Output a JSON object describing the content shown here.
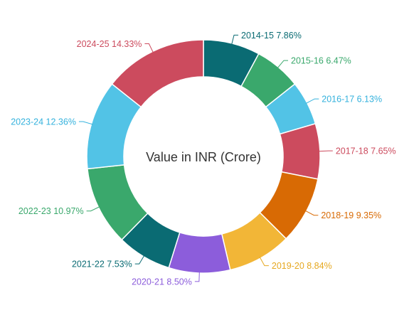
{
  "chart_data": {
    "type": "pie",
    "variant": "donut",
    "center_label": "Value in INR (Crore)",
    "categories": [
      "2014-15",
      "2015-16",
      "2016-17",
      "2017-18",
      "2018-19",
      "2019-20",
      "2020-21",
      "2021-22",
      "2022-23",
      "2023-24",
      "2024-25"
    ],
    "values": [
      7.86,
      6.47,
      6.13,
      7.65,
      9.35,
      8.84,
      8.5,
      7.53,
      10.97,
      12.36,
      14.33
    ],
    "value_labels": [
      "7.86%",
      "6.47%",
      "6.13%",
      "7.65%",
      "9.35%",
      "8.84%",
      "8.50%",
      "7.53%",
      "10.97%",
      "12.36%",
      "14.33%"
    ],
    "colors": [
      "#0a6b73",
      "#3aa86c",
      "#52c3e6",
      "#cc4b5e",
      "#d86a04",
      "#f2b637",
      "#8c5ddb",
      "#0a6b73",
      "#3aa86c",
      "#52c3e6",
      "#cc4b5e"
    ],
    "label_colors": [
      "#0a6b73",
      "#3aa86c",
      "#35b2dd",
      "#cc4b5e",
      "#d86a04",
      "#e6a820",
      "#8c5ddb",
      "#0a6b73",
      "#3aa86c",
      "#35b2dd",
      "#cc4b5e"
    ],
    "start_angle_deg": 0,
    "direction": "clockwise",
    "legend": "none"
  }
}
